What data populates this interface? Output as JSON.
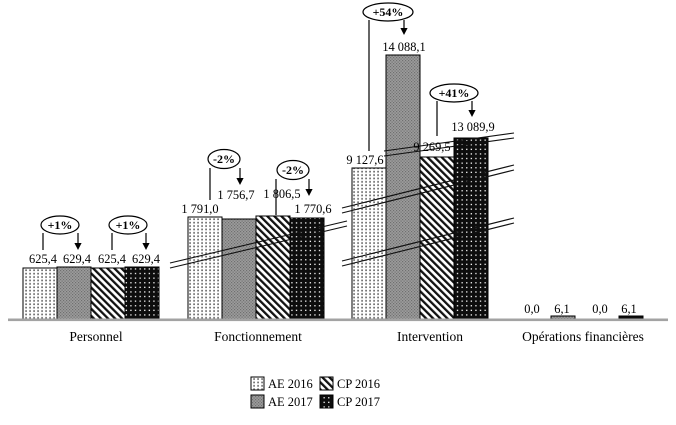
{
  "chart_data": {
    "type": "bar",
    "title": "",
    "categories": [
      "Personnel",
      "Fonctionnement",
      "Intervention",
      "Opérations financières"
    ],
    "series": [
      {
        "name": "AE 2016",
        "pattern": "white-with-black-dots",
        "values": [
          625.4,
          1791.0,
          9127.6,
          0.0
        ]
      },
      {
        "name": "AE 2017",
        "pattern": "gray-crosshatch",
        "values": [
          629.4,
          1756.7,
          14088.1,
          6.1
        ]
      },
      {
        "name": "CP 2016",
        "pattern": "black-diagonal-stripes",
        "values": [
          625.4,
          1806.5,
          9269.5,
          0.0
        ]
      },
      {
        "name": "CP 2017",
        "pattern": "black-with-white-dots",
        "values": [
          629.4,
          1770.6,
          13089.9,
          6.1
        ]
      }
    ],
    "value_labels": [
      [
        "625,4",
        "1 791,0",
        "9 127,6",
        "0,0"
      ],
      [
        "629,4",
        "1 756,7",
        "14 088,1",
        "6,1"
      ],
      [
        "625,4",
        "1 806,5",
        "9 269,5",
        "0,0"
      ],
      [
        "629,4",
        "1 770,6",
        "13 089,9",
        "6,1"
      ]
    ],
    "annotations": [
      {
        "text": "+1%",
        "group": "Personnel",
        "from": "AE 2016",
        "to": "AE 2017"
      },
      {
        "text": "+1%",
        "group": "Personnel",
        "from": "CP 2016",
        "to": "CP 2017"
      },
      {
        "text": "-2%",
        "group": "Fonctionnement",
        "from": "AE 2016",
        "to": "AE 2017"
      },
      {
        "text": "-2%",
        "group": "Fonctionnement",
        "from": "CP 2016",
        "to": "CP 2017"
      },
      {
        "text": "+54%",
        "group": "Intervention",
        "from": "AE 2016",
        "to": "AE 2017"
      },
      {
        "text": "+41%",
        "group": "Intervention",
        "from": "CP 2016",
        "to": "CP 2017"
      }
    ],
    "legend": {
      "position": "bottom",
      "rows": [
        [
          "AE 2016",
          "CP 2016"
        ],
        [
          "AE 2017",
          "CP 2017"
        ]
      ]
    },
    "axis": {
      "value_axis_hidden": true,
      "baseline_color": "#a3a3a3",
      "scale_breaks": {
        "Fonctionnement": 1,
        "Intervention": 3
      }
    },
    "colors": {
      "outline": "#000000",
      "gray_fill": "#9c9c9c",
      "background": "#ffffff"
    }
  }
}
